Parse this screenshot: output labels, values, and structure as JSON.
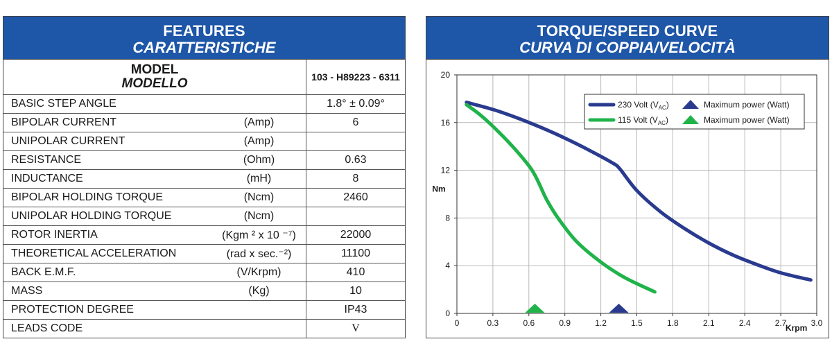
{
  "features": {
    "title": "FEATURES",
    "title_it": "CARATTERISTICHE",
    "model_label": "MODEL",
    "model_label_it": "MODELLO",
    "model_code": "103 - H89223 - 6311",
    "rows": [
      {
        "name": "BASIC STEP ANGLE",
        "unit": "",
        "value": "1.8°  ± 0.09°"
      },
      {
        "name": "BIPOLAR CURRENT",
        "unit": "(Amp)",
        "value": "6"
      },
      {
        "name": "UNIPOLAR CURRENT",
        "unit": "(Amp)",
        "value": ""
      },
      {
        "name": "RESISTANCE",
        "unit": "(Ohm)",
        "value": "0.63"
      },
      {
        "name": "INDUCTANCE",
        "unit": "(mH)",
        "value": "8"
      },
      {
        "name": "BIPOLAR HOLDING TORQUE",
        "unit": "(Ncm)",
        "value": "2460"
      },
      {
        "name": "UNIPOLAR HOLDING TORQUE",
        "unit": "(Ncm)",
        "value": ""
      },
      {
        "name": "ROTOR INERTIA",
        "unit": "(Kgm ² x 10 ⁻⁷)",
        "value": "22000"
      },
      {
        "name": "THEORETICAL ACCELERATION",
        "unit": "(rad x sec.⁻²)",
        "value": "11100"
      },
      {
        "name": "BACK E.M.F.",
        "unit": "(V/Krpm)",
        "value": "410"
      },
      {
        "name": "MASS",
        "unit": "(Kg)",
        "value": "10"
      },
      {
        "name": "PROTECTION DEGREE",
        "unit": "",
        "value": "IP43"
      },
      {
        "name": "LEADS CODE",
        "unit": "",
        "value": "V"
      }
    ]
  },
  "chart_header": {
    "title": "TORQUE/SPEED CURVE",
    "title_it": "CURVA DI COPPIA/VELOCITÀ"
  },
  "colors": {
    "header_blue": "#1e56a8",
    "series_230": "#2a3b8f",
    "series_115": "#1fb34a"
  },
  "chart_data": {
    "type": "line",
    "title": "TORQUE/SPEED CURVE",
    "ylabel": "Nm",
    "xlabel": "Krpm",
    "xlim": [
      0,
      3.0
    ],
    "ylim": [
      0,
      20
    ],
    "xticks": [
      "0",
      "0.3",
      "0.6",
      "0.9",
      "1.2",
      "1.5",
      "1.8",
      "2.1",
      "2.4",
      "2.7",
      "3.0"
    ],
    "yticks": [
      "0",
      "4",
      "8",
      "12",
      "16",
      "20"
    ],
    "grid": true,
    "legend_position": "top-right",
    "series": [
      {
        "name": "230 Volt (VAC)",
        "legend_main": "230 Volt (V",
        "legend_sub": "AC",
        "legend_close": ")",
        "marker_label": "Maximum power (Watt)",
        "color": "#2a3b8f",
        "x": [
          0.08,
          0.3,
          0.5,
          0.7,
          0.9,
          1.1,
          1.3,
          1.36,
          1.5,
          1.7,
          1.9,
          2.1,
          2.3,
          2.5,
          2.7,
          2.95
        ],
        "y": [
          17.7,
          17.1,
          16.4,
          15.6,
          14.7,
          13.7,
          12.6,
          12.1,
          10.3,
          8.5,
          7.1,
          5.9,
          4.9,
          4.1,
          3.4,
          2.8
        ],
        "max_power_x": 1.35
      },
      {
        "name": "115 Volt (VAC)",
        "legend_main": "115 Volt (V",
        "legend_sub": "AC",
        "legend_close": ")",
        "marker_label": "Maximum power (Watt)",
        "color": "#1fb34a",
        "x": [
          0.08,
          0.2,
          0.35,
          0.5,
          0.62,
          0.68,
          0.75,
          0.85,
          1.0,
          1.2,
          1.4,
          1.65
        ],
        "y": [
          17.5,
          16.6,
          15.2,
          13.6,
          12.1,
          11.0,
          9.5,
          7.9,
          6.0,
          4.3,
          3.0,
          1.8
        ],
        "max_power_x": 0.65
      }
    ]
  }
}
